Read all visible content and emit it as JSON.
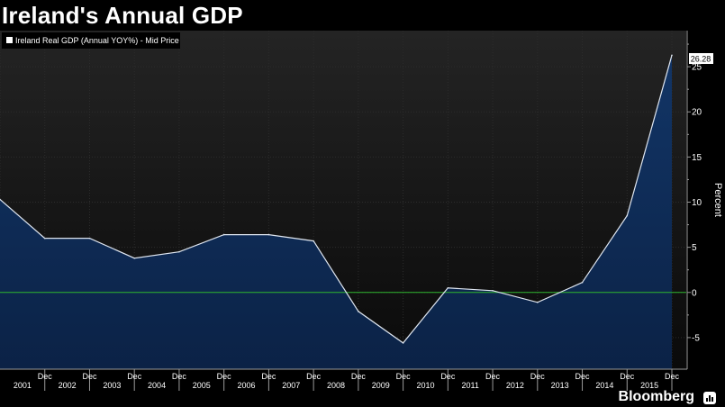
{
  "header": {
    "title": "Ireland's Annual GDP"
  },
  "footer": {
    "brand": "Bloomberg"
  },
  "colors": {
    "line": "#dfe6f0",
    "area_top": "#123566",
    "area_bottom": "#0b2246",
    "zero_line": "#2fb52f",
    "grid": "#2c2c2c",
    "plot_bg_top": "#242424",
    "plot_bg_bottom": "#0a0a0a"
  },
  "chart_data": {
    "type": "area",
    "title": "Ireland's Annual GDP",
    "legend": "Ireland Real GDP (Annual YOY%) - Mid Price",
    "ylabel": "Percent",
    "ylim": [
      -8.5,
      29
    ],
    "yticks": [
      -5,
      0,
      5,
      10,
      15,
      20,
      25
    ],
    "last_value_label": "26.28",
    "x_tick_label": "Dec",
    "categories": [
      "2001",
      "2002",
      "2003",
      "2004",
      "2005",
      "2006",
      "2007",
      "2008",
      "2009",
      "2010",
      "2011",
      "2012",
      "2013",
      "2014",
      "2015"
    ],
    "series": [
      {
        "name": "Ireland Real GDP (Annual YOY%) - Mid Price",
        "x": [
          2000.9,
          2001.9,
          2002.9,
          2003.9,
          2004.9,
          2005.9,
          2006.9,
          2007.9,
          2008.9,
          2009.9,
          2010.9,
          2011.9,
          2012.9,
          2013.9,
          2014.9,
          2015.9
        ],
        "values": [
          10.3,
          6.0,
          6.0,
          3.8,
          4.5,
          6.4,
          6.4,
          5.7,
          -2.1,
          -5.6,
          0.5,
          0.2,
          -1.1,
          1.1,
          8.5,
          26.28
        ]
      }
    ],
    "reference_line": 0
  }
}
